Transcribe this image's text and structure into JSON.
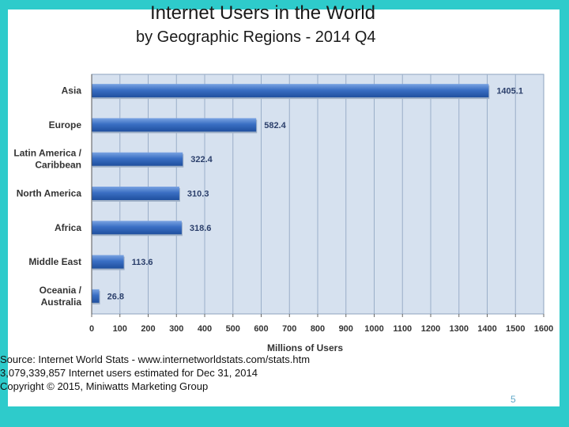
{
  "chart_data": {
    "type": "bar",
    "orientation": "horizontal",
    "title": "Internet Users in the World",
    "subtitle": "by Geographic Regions - 2014 Q4",
    "xlabel": "Millions of Users",
    "ylabel": "",
    "xlim": [
      0,
      1600
    ],
    "x_ticks": [
      0,
      100,
      200,
      300,
      400,
      500,
      600,
      700,
      800,
      900,
      1000,
      1100,
      1200,
      1300,
      1400,
      1500,
      1600
    ],
    "grid": true,
    "categories": [
      [
        "Asia"
      ],
      [
        "Europe"
      ],
      [
        "Latin America /",
        "Caribbean"
      ],
      [
        "North America"
      ],
      [
        "Africa"
      ],
      [
        "Middle East"
      ],
      [
        "Oceania  /",
        "Australia"
      ]
    ],
    "values": [
      1405.1,
      582.4,
      322.4,
      310.3,
      318.6,
      113.6,
      26.8
    ],
    "value_labels": [
      "1405.1",
      "582.4",
      "322.4",
      "310.3",
      "318.6",
      "113.6",
      "26.8"
    ],
    "colors": {
      "bar": "#2f63b8",
      "bar_light": "#6f9be0",
      "plot_bg": "#d6e1ef",
      "grid": "#9aaec8"
    }
  },
  "source": {
    "line1": "Source: Internet World Stats - www.internetworldstats.com/stats.htm",
    "line2": "3,079,339,857 Internet users estimated for Dec 31, 2014",
    "line3": "Copyright © 2015, Miniwatts Marketing Group"
  },
  "page_number": "5"
}
